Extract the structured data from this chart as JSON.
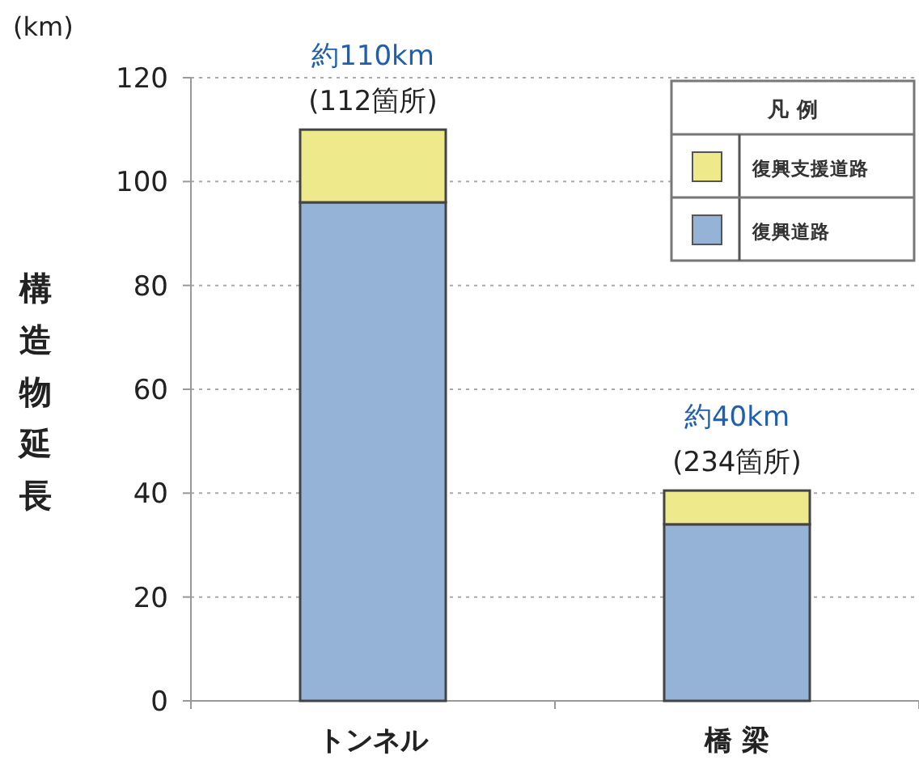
{
  "chart_data": {
    "type": "bar",
    "stacked": true,
    "ylabel": "構造物延長",
    "legend_title": "凡 例",
    "legend": "top right",
    "grid": "y",
    "categories": [
      "トンネル",
      "橋 梁"
    ],
    "series": [
      {
        "name": "復興道路",
        "color": "#95b3d7",
        "values": [
          96,
          34
        ]
      },
      {
        "name": "復興支援道路",
        "color": "#eeea8c",
        "values": [
          14,
          6.5
        ]
      }
    ],
    "ylim": [
      0,
      120
    ],
    "yticks": [
      0,
      20,
      40,
      60,
      80,
      100,
      120
    ],
    "annotations": [
      "(km)",
      {
        "text": "約110km",
        "x": "トンネル",
        "y": 110
      },
      {
        "text": "(112箇所)",
        "x": "トンネル",
        "y": 110
      },
      {
        "text": "約40km",
        "x": "橋 梁",
        "y": 40.5
      },
      {
        "text": "(234箇所)",
        "x": "橋 梁",
        "y": 40.5
      }
    ]
  }
}
